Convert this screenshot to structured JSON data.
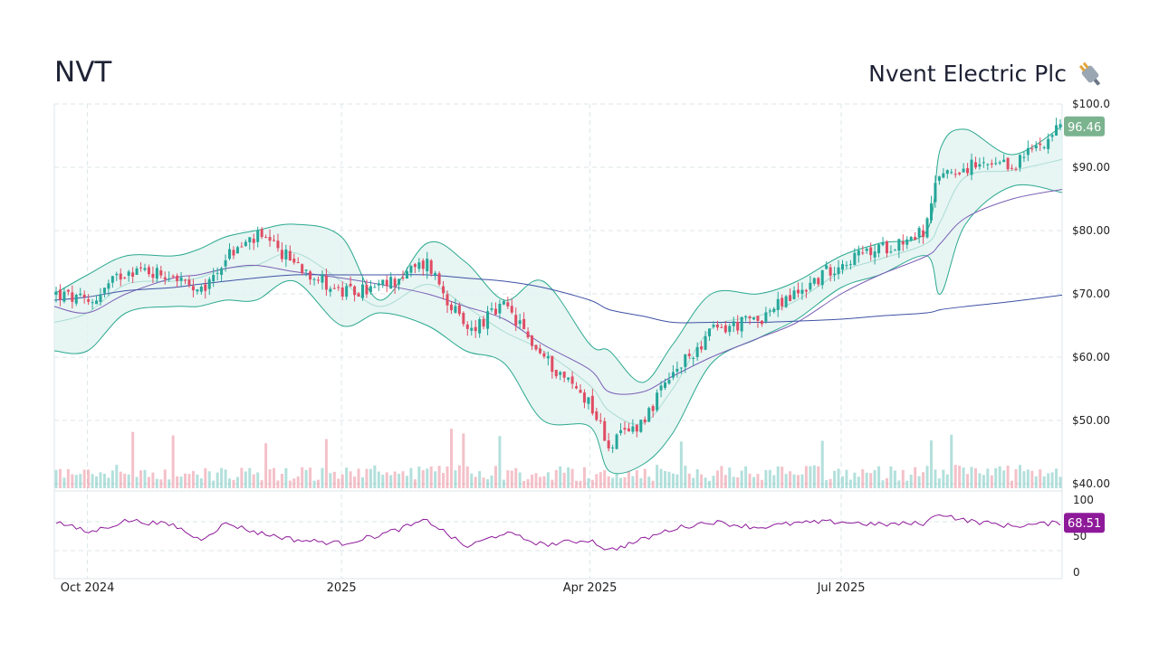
{
  "header": {
    "ticker": "NVT",
    "company": "Nvent Electric Plc",
    "logo_icon": "electric-plug-icon"
  },
  "colors": {
    "up": "#26a69a",
    "down": "#e04c63",
    "bollinger_fill": "#e3f3f1",
    "bollinger_line": "#2aa98f",
    "sma_mid": "#7a5fb5",
    "sma_long": "#3f51a5",
    "rsi_line": "#8e1a9a",
    "last_price_badge": "#7bb38f",
    "rsi_badge": "#8e1a9a",
    "grid": "#dce6ea"
  },
  "chart_data": {
    "type": "candlestick",
    "price_axis": {
      "range": [
        40,
        100
      ],
      "ticks": [
        "$100.0",
        "$90.00",
        "$80.00",
        "$70.00",
        "$60.00",
        "$50.00",
        "$40.00"
      ],
      "tick_values": [
        100,
        90,
        80,
        70,
        60,
        50,
        40
      ]
    },
    "x_axis": {
      "labels": [
        "Oct 2024",
        "2025",
        "Apr 2025",
        "Jul 2025"
      ],
      "range": [
        "2024-09-19",
        "2025-09-19"
      ],
      "label_dates": [
        "2024-10-01",
        "2025-01-01",
        "2025-04-01",
        "2025-07-01"
      ]
    },
    "last_price": "96.46",
    "close_series": {
      "dates": [
        "2024-09-19",
        "2024-10-01",
        "2024-10-15",
        "2024-11-01",
        "2024-11-10",
        "2024-11-20",
        "2024-12-01",
        "2024-12-15",
        "2025-01-01",
        "2025-01-15",
        "2025-02-01",
        "2025-02-15",
        "2025-03-01",
        "2025-03-15",
        "2025-04-01",
        "2025-04-08",
        "2025-04-20",
        "2025-05-01",
        "2025-05-15",
        "2025-06-01",
        "2025-06-15",
        "2025-07-01",
        "2025-07-15",
        "2025-08-01",
        "2025-08-06",
        "2025-08-15",
        "2025-09-01",
        "2025-09-19"
      ],
      "values": [
        70,
        68.5,
        74,
        73,
        69.5,
        76,
        79,
        75,
        70,
        71,
        75,
        64,
        68,
        60,
        53,
        46,
        50,
        57,
        64,
        66,
        70,
        75,
        77,
        80,
        89,
        90,
        90,
        96.46
      ]
    },
    "bollinger_upper": [
      70,
      73,
      76,
      76,
      77,
      79,
      80,
      81,
      79,
      69,
      78,
      75,
      69,
      72,
      62,
      61,
      56,
      62,
      70,
      70,
      72,
      76,
      78,
      80,
      93,
      96,
      92,
      96.5
    ],
    "bollinger_lower": [
      61,
      61,
      67,
      68,
      68,
      69,
      69,
      72,
      65,
      67,
      65,
      61,
      59,
      50,
      49,
      42,
      43,
      48,
      59,
      63,
      66,
      71,
      73,
      76,
      70,
      81,
      87,
      86
    ],
    "sma_mid": [
      68,
      67,
      70,
      72.5,
      73,
      74,
      74.5,
      73.5,
      72.5,
      71.5,
      70,
      68,
      66,
      62,
      58,
      54.5,
      54.5,
      57,
      60,
      63,
      65.5,
      70,
      73,
      76,
      78,
      82,
      85,
      86.5
    ],
    "sma_long": [
      69,
      69.5,
      70.5,
      71,
      71.5,
      72,
      72.5,
      73,
      73,
      73,
      73,
      72.5,
      72,
      71,
      69,
      67.5,
      66.5,
      65.5,
      65.5,
      65.5,
      65.7,
      66,
      66.5,
      67,
      67.5,
      68,
      68.8,
      69.8
    ],
    "volume_note": "relative volume bars",
    "rsi": {
      "range": [
        0,
        100
      ],
      "ticks": [
        "100",
        "50",
        "0"
      ],
      "tick_values": [
        100,
        50,
        0
      ],
      "last_value": "68.51",
      "dates": [
        "2024-09-19",
        "2024-10-01",
        "2024-10-15",
        "2024-11-01",
        "2024-11-10",
        "2024-11-20",
        "2024-12-01",
        "2024-12-15",
        "2025-01-01",
        "2025-01-15",
        "2025-02-01",
        "2025-02-15",
        "2025-03-01",
        "2025-03-15",
        "2025-04-01",
        "2025-04-08",
        "2025-04-20",
        "2025-05-01",
        "2025-05-15",
        "2025-06-01",
        "2025-06-15",
        "2025-07-01",
        "2025-07-15",
        "2025-08-01",
        "2025-08-06",
        "2025-08-15",
        "2025-09-01",
        "2025-09-19"
      ],
      "values": [
        70,
        55,
        72,
        65,
        45,
        68,
        55,
        45,
        40,
        52,
        72,
        35,
        55,
        38,
        45,
        30,
        45,
        60,
        70,
        62,
        68,
        70,
        66,
        68,
        82,
        72,
        64,
        68.51
      ]
    }
  }
}
